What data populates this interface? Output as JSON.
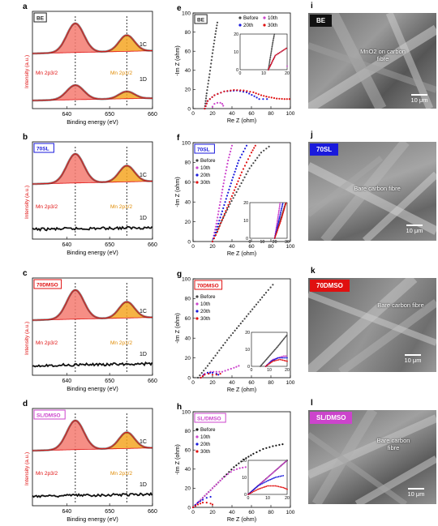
{
  "panel_letters": [
    "a",
    "b",
    "c",
    "d",
    "e",
    "f",
    "g",
    "h",
    "i",
    "j",
    "k",
    "l"
  ],
  "xps": {
    "xlabel": "Binding energy (eV)",
    "ylabel": "Intensity (a.u.)",
    "xticks": [
      640,
      650,
      660
    ],
    "xlim": [
      632,
      660
    ],
    "peak_labels": {
      "mn32": "Mn 2p3/2",
      "mn12": "Mn 2p1/2"
    },
    "panels": [
      {
        "tag": "BE",
        "tag_color": "#222222",
        "line_labels": [
          "1C",
          "1D"
        ],
        "second_has_peaks": true
      },
      {
        "tag": "70SL",
        "tag_color": "#1a1adc",
        "line_labels": [
          "1C",
          "1D"
        ],
        "second_has_peaks": false
      },
      {
        "tag": "70DMSO",
        "tag_color": "#e01010",
        "line_labels": [
          "1C",
          "1D"
        ],
        "second_has_peaks": false
      },
      {
        "tag": "SL/DMSO",
        "tag_color": "#cc44cc",
        "line_labels": [
          "1C",
          "1D"
        ],
        "second_has_peaks": false
      }
    ]
  },
  "chart_data": [
    {
      "panel": "e",
      "type": "scatter",
      "tag": "BE",
      "tag_color": "#222222",
      "xlabel": "Re Z (ohm)",
      "ylabel": "-Im Z (ohm)",
      "xlim": [
        0,
        100
      ],
      "ylim": [
        0,
        100
      ],
      "xticks": [
        0,
        20,
        40,
        60,
        80,
        100
      ],
      "yticks": [
        0,
        20,
        40,
        60,
        80,
        100
      ],
      "legend": "top-right",
      "inset": {
        "xlim": [
          0,
          20
        ],
        "ylim": [
          0,
          20
        ],
        "xticks": [
          0,
          10,
          20
        ],
        "yticks": [
          0,
          10,
          20
        ]
      },
      "series": [
        {
          "name": "Before",
          "color": "#444444",
          "kind": "capline",
          "points": [
            [
              12,
              0
            ],
            [
              13,
              8
            ],
            [
              14,
              16
            ],
            [
              15.5,
              26
            ],
            [
              17,
              36
            ],
            [
              18.5,
              47
            ],
            [
              20,
              58
            ],
            [
              21.5,
              68
            ],
            [
              23,
              78
            ],
            [
              25,
              90
            ]
          ]
        },
        {
          "name": "10th",
          "color": "#cc44cc",
          "kind": "arc",
          "points": [
            [
              20,
              2
            ],
            [
              22,
              5
            ],
            [
              25,
              6
            ],
            [
              28,
              6
            ],
            [
              30,
              5
            ],
            [
              31,
              3
            ]
          ]
        },
        {
          "name": "20th",
          "color": "#1a1adc",
          "kind": "arc",
          "points": [
            [
              12,
              0
            ],
            [
              15,
              8
            ],
            [
              22,
              14
            ],
            [
              32,
              18
            ],
            [
              45,
              19
            ],
            [
              55,
              17
            ],
            [
              63,
              13
            ],
            [
              68,
              10
            ],
            [
              72,
              10
            ],
            [
              76,
              10
            ]
          ]
        },
        {
          "name": "30th",
          "color": "#e01010",
          "kind": "arc",
          "points": [
            [
              12,
              0
            ],
            [
              15,
              8
            ],
            [
              22,
              14
            ],
            [
              32,
              18
            ],
            [
              42,
              19.5
            ],
            [
              52,
              19
            ],
            [
              62,
              17
            ],
            [
              70,
              14
            ],
            [
              78,
              12
            ],
            [
              86,
              10.5
            ],
            [
              94,
              10
            ],
            [
              99,
              10
            ]
          ]
        }
      ]
    },
    {
      "panel": "f",
      "type": "scatter",
      "tag": "70SL",
      "tag_color": "#1a1adc",
      "xlabel": "Re Z (ohm)",
      "ylabel": "-Im Z (ohm)",
      "xlim": [
        0,
        100
      ],
      "ylim": [
        0,
        100
      ],
      "xticks": [
        0,
        20,
        40,
        60,
        80,
        100
      ],
      "yticks": [
        0,
        20,
        40,
        60,
        80,
        100
      ],
      "legend": "top-left",
      "inset": {
        "xlim": [
          0,
          30
        ],
        "ylim": [
          0,
          20
        ],
        "xticks": [
          0,
          10,
          20,
          30
        ],
        "yticks": [
          0,
          10,
          20
        ]
      },
      "series": [
        {
          "name": "Before",
          "color": "#444444",
          "kind": "capline",
          "points": [
            [
              20,
              0
            ],
            [
              28,
              18
            ],
            [
              38,
              38
            ],
            [
              48,
              56
            ],
            [
              58,
              74
            ],
            [
              70,
              90
            ],
            [
              78,
              96
            ]
          ]
        },
        {
          "name": "10th",
          "color": "#cc44cc",
          "kind": "capline",
          "points": [
            [
              20,
              0
            ],
            [
              24,
              18
            ],
            [
              28,
              40
            ],
            [
              32,
              62
            ],
            [
              36,
              82
            ],
            [
              40,
              97
            ]
          ]
        },
        {
          "name": "20th",
          "color": "#1a1adc",
          "kind": "capline",
          "points": [
            [
              20,
              0
            ],
            [
              26,
              18
            ],
            [
              33,
              40
            ],
            [
              40,
              62
            ],
            [
              47,
              82
            ],
            [
              55,
              97
            ]
          ]
        },
        {
          "name": "30th",
          "color": "#e01010",
          "kind": "capline",
          "points": [
            [
              20,
              0
            ],
            [
              25,
              10
            ],
            [
              30,
              22
            ],
            [
              35,
              34
            ],
            [
              40,
              46
            ],
            [
              45,
              58
            ],
            [
              50,
              70
            ],
            [
              55,
              80
            ],
            [
              60,
              90
            ],
            [
              64,
              97
            ]
          ]
        }
      ]
    },
    {
      "panel": "g",
      "type": "scatter",
      "tag": "70DMSO",
      "tag_color": "#e01010",
      "xlabel": "Re Z (ohm)",
      "ylabel": "-Im Z (ohm)",
      "xlim": [
        0,
        100
      ],
      "ylim": [
        0,
        100
      ],
      "xticks": [
        0,
        20,
        40,
        60,
        80,
        100
      ],
      "yticks": [
        0,
        20,
        40,
        60,
        80,
        100
      ],
      "legend": "top-left",
      "inset": {
        "xlim": [
          0,
          20
        ],
        "ylim": [
          0,
          20
        ],
        "xticks": [
          0,
          10,
          20
        ],
        "yticks": [
          0,
          10,
          20
        ]
      },
      "series": [
        {
          "name": "Before",
          "color": "#444444",
          "kind": "capline",
          "points": [
            [
              5,
              0
            ],
            [
              15,
              12
            ],
            [
              25,
              25
            ],
            [
              35,
              38
            ],
            [
              45,
              50
            ],
            [
              55,
              62
            ],
            [
              65,
              74
            ],
            [
              75,
              86
            ],
            [
              82,
              94
            ]
          ]
        },
        {
          "name": "10th",
          "color": "#cc44cc",
          "kind": "arc",
          "points": [
            [
              8,
              0
            ],
            [
              12,
              4
            ],
            [
              18,
              6
            ],
            [
              24,
              6
            ],
            [
              30,
              6
            ],
            [
              36,
              8
            ],
            [
              42,
              10
            ],
            [
              47,
              12
            ]
          ]
        },
        {
          "name": "20th",
          "color": "#1a1adc",
          "kind": "arc",
          "points": [
            [
              8,
              0
            ],
            [
              11,
              3
            ],
            [
              15,
              5
            ],
            [
              20,
              5
            ],
            [
              24,
              4
            ],
            [
              26,
              3
            ]
          ]
        },
        {
          "name": "30th",
          "color": "#e01010",
          "kind": "arc",
          "points": [
            [
              8,
              0
            ],
            [
              12,
              3
            ],
            [
              16,
              4
            ],
            [
              20,
              3
            ],
            [
              24,
              3
            ],
            [
              28,
              4
            ]
          ]
        }
      ]
    },
    {
      "panel": "h",
      "type": "scatter",
      "tag": "SL/DMSO",
      "tag_color": "#cc44cc",
      "xlabel": "Re Z (ohm)",
      "ylabel": "-Im Z (ohm)",
      "xlim": [
        0,
        100
      ],
      "ylim": [
        0,
        100
      ],
      "xticks": [
        0,
        20,
        40,
        60,
        80,
        100
      ],
      "yticks": [
        0,
        20,
        40,
        60,
        80,
        100
      ],
      "legend": "top-left",
      "inset": {
        "xlim": [
          0,
          20
        ],
        "ylim": [
          0,
          20
        ],
        "xticks": [
          0,
          10,
          20
        ],
        "yticks": [
          0,
          10,
          20
        ]
      },
      "series": [
        {
          "name": "Before",
          "color": "#111111",
          "kind": "capline",
          "points": [
            [
              0,
              0
            ],
            [
              8,
              8
            ],
            [
              16,
              16
            ],
            [
              24,
              24
            ],
            [
              32,
              32
            ],
            [
              42,
              42
            ],
            [
              52,
              50
            ],
            [
              62,
              56
            ],
            [
              72,
              61
            ],
            [
              82,
              64
            ],
            [
              92,
              66
            ]
          ]
        },
        {
          "name": "10th",
          "color": "#cc44cc",
          "kind": "capline",
          "points": [
            [
              0,
              0
            ],
            [
              6,
              6
            ],
            [
              12,
              12
            ],
            [
              18,
              18
            ],
            [
              24,
              24
            ],
            [
              30,
              30
            ],
            [
              36,
              35
            ],
            [
              42,
              39
            ],
            [
              48,
              41
            ],
            [
              54,
              42
            ],
            [
              58,
              42
            ]
          ]
        },
        {
          "name": "20th",
          "color": "#1a1adc",
          "kind": "arc",
          "points": [
            [
              0,
              0
            ],
            [
              5,
              5
            ],
            [
              10,
              8
            ],
            [
              14,
              10
            ],
            [
              18,
              11
            ]
          ]
        },
        {
          "name": "30th",
          "color": "#e01010",
          "kind": "arc",
          "points": [
            [
              0,
              0
            ],
            [
              5,
              3
            ],
            [
              10,
              5
            ],
            [
              14,
              5
            ],
            [
              18,
              4
            ],
            [
              20,
              3
            ]
          ]
        }
      ]
    }
  ],
  "sem": [
    {
      "panel": "i",
      "tag": "BE",
      "tag_color": "#111111",
      "annotation": "MnO2 on carbon fibre",
      "scale_bar": "10 μm"
    },
    {
      "panel": "j",
      "tag": "70SL",
      "tag_color": "#1a1adc",
      "annotation": "Bare carbon fibre",
      "scale_bar": "10 μm"
    },
    {
      "panel": "k",
      "tag": "70DMSO",
      "tag_color": "#e01010",
      "annotation": "Bare carbon fibre",
      "scale_bar": "10 μm"
    },
    {
      "panel": "l",
      "tag": "SL/DMSO",
      "tag_color": "#cc44cc",
      "annotation": "Bare carbon fibre",
      "scale_bar": "10 μm"
    }
  ]
}
